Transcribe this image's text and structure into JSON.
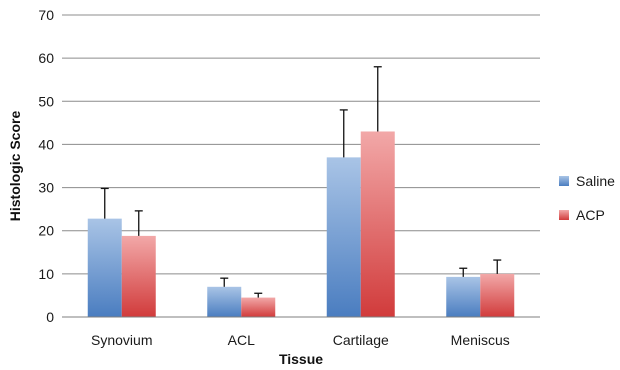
{
  "chart_data": {
    "type": "bar",
    "title": "",
    "xlabel": "Tissue",
    "ylabel": "Histologic Score",
    "categories": [
      "Synovium",
      "ACL",
      "Cartilage",
      "Meniscus"
    ],
    "ylim": [
      0,
      70
    ],
    "yticks": [
      0,
      10,
      20,
      30,
      40,
      50,
      60,
      70
    ],
    "grid": true,
    "legend_position": "right",
    "error_bars": "positive",
    "series": [
      {
        "name": "Saline",
        "values": [
          22.8,
          7.0,
          37.0,
          9.3
        ],
        "errors": [
          7.0,
          2.0,
          11.0,
          2.0
        ],
        "color": "#4a7dc0",
        "color_light": "#a9c4e6"
      },
      {
        "name": "ACP",
        "values": [
          18.8,
          4.5,
          43.0,
          10.0
        ],
        "errors": [
          5.8,
          1.0,
          15.0,
          3.2
        ],
        "color": "#d13b3b",
        "color_light": "#f2a8a8"
      }
    ]
  }
}
